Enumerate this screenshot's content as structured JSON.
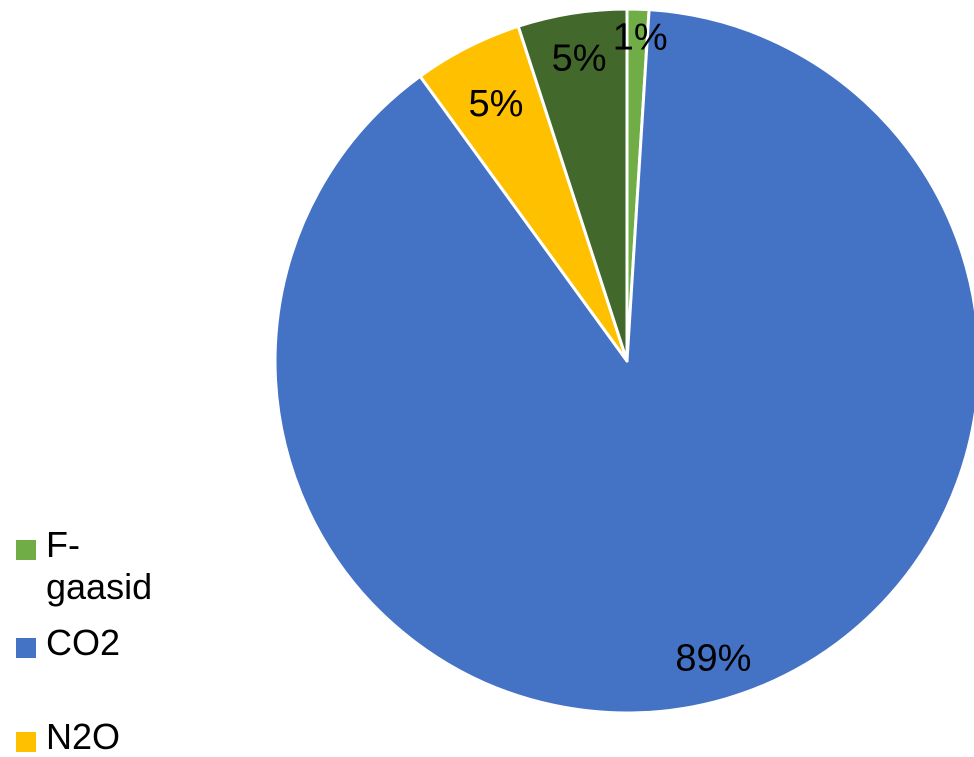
{
  "chart_data": {
    "type": "pie",
    "slices": [
      {
        "name": "F-gaasid",
        "value": 1,
        "label": "1%",
        "color": "#70AD47"
      },
      {
        "name": "CO2",
        "value": 89,
        "label": "89%",
        "color": "#4472C4"
      },
      {
        "name": "N2O",
        "value": 5,
        "label": "5%",
        "color": "#FFC000"
      },
      {
        "name": "",
        "value": 5,
        "label": "5%",
        "color": "#43682B"
      }
    ],
    "legend": {
      "placement": "bottom-left",
      "items": [
        {
          "label": "F-\ngaasid",
          "color": "#70AD47"
        },
        {
          "label": "CO2",
          "color": "#4472C4"
        },
        {
          "label": "N2O",
          "color": "#FFC000"
        }
      ]
    }
  }
}
